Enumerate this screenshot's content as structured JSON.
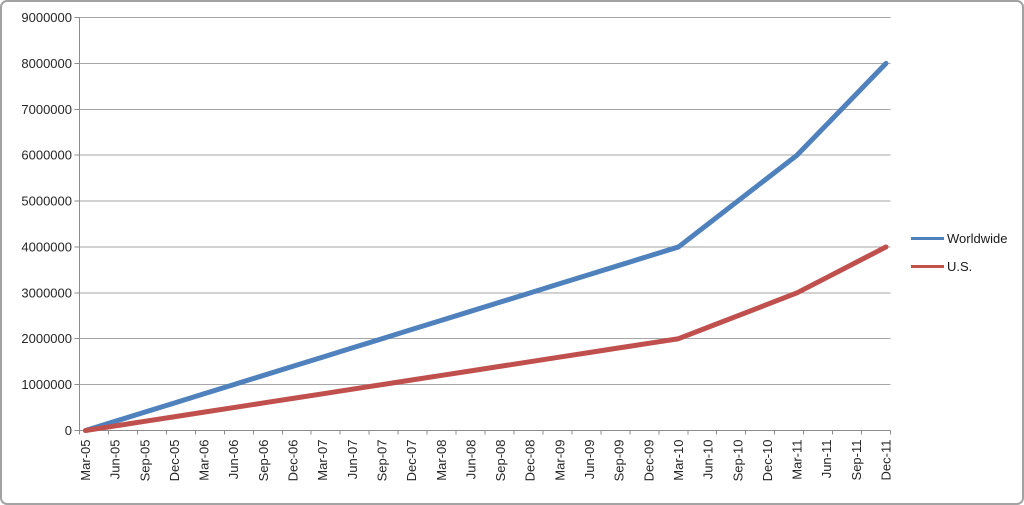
{
  "figure": {
    "background": "#ffffff",
    "border_color": "#a3a3a3"
  },
  "chart_data": {
    "type": "line",
    "title": "",
    "xlabel": "",
    "ylabel": "",
    "categories": [
      "Mar-05",
      "Jun-05",
      "Sep-05",
      "Dec-05",
      "Mar-06",
      "Jun-06",
      "Sep-06",
      "Dec-06",
      "Mar-07",
      "Jun-07",
      "Sep-07",
      "Dec-07",
      "Mar-08",
      "Jun-08",
      "Sep-08",
      "Dec-08",
      "Mar-09",
      "Jun-09",
      "Sep-09",
      "Dec-09",
      "Mar-10",
      "Jun-10",
      "Sep-10",
      "Dec-10",
      "Mar-11",
      "Jun-11",
      "Sep-11",
      "Dec-11"
    ],
    "series": [
      {
        "name": "Worldwide",
        "color": "#4F81BD",
        "values": [
          0,
          200000,
          400000,
          600000,
          800000,
          1000000,
          1200000,
          1400000,
          1600000,
          1800000,
          2000000,
          2200000,
          2400000,
          2600000,
          2800000,
          3000000,
          3200000,
          3400000,
          3600000,
          3800000,
          4000000,
          4500000,
          5000000,
          5500000,
          6000000,
          6666667,
          7333333,
          8000000
        ]
      },
      {
        "name": "U.S.",
        "color": "#C0504D",
        "values": [
          0,
          100000,
          200000,
          300000,
          400000,
          500000,
          600000,
          700000,
          800000,
          900000,
          1000000,
          1100000,
          1200000,
          1300000,
          1400000,
          1500000,
          1600000,
          1700000,
          1800000,
          1900000,
          2000000,
          2250000,
          2500000,
          2750000,
          3000000,
          3333333,
          3666667,
          4000000
        ]
      }
    ],
    "key_points": {
      "Worldwide": [
        [
          "Mar-05",
          0
        ],
        [
          "Mar-10",
          4000000
        ],
        [
          "Mar-11",
          6000000
        ],
        [
          "Dec-11",
          8000000
        ]
      ],
      "U.S.": [
        [
          "Mar-05",
          0
        ],
        [
          "Mar-10",
          2000000
        ],
        [
          "Mar-11",
          3000000
        ],
        [
          "Dec-11",
          4000000
        ]
      ]
    },
    "ylim": [
      0,
      9000000
    ],
    "ytick_interval": 1000000,
    "ytick_labels": [
      "0",
      "1000000",
      "2000000",
      "3000000",
      "4000000",
      "5000000",
      "6000000",
      "7000000",
      "8000000",
      "9000000"
    ],
    "grid": true,
    "x_label_rotation": 90,
    "legend_position": "right",
    "colors": {
      "gridline": "#a6a6a6",
      "axis": "#8c8c8c",
      "label_text": "#262626"
    }
  }
}
